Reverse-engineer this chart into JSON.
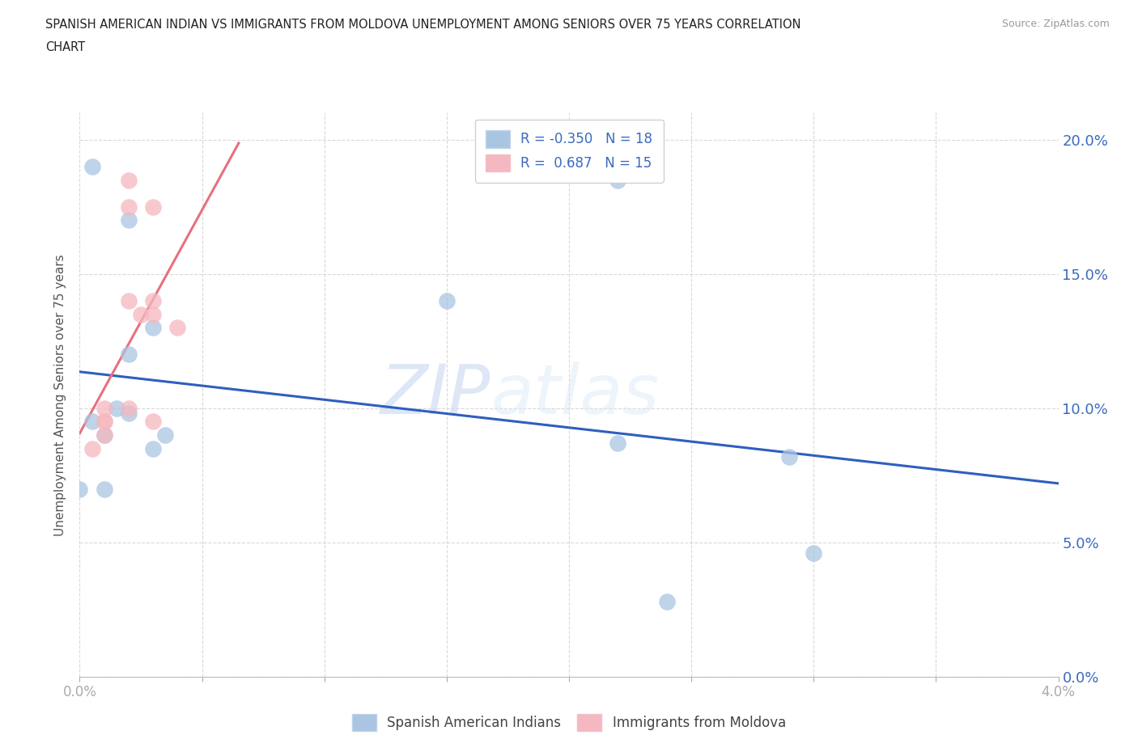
{
  "title_line1": "SPANISH AMERICAN INDIAN VS IMMIGRANTS FROM MOLDOVA UNEMPLOYMENT AMONG SENIORS OVER 75 YEARS CORRELATION",
  "title_line2": "CHART",
  "source": "Source: ZipAtlas.com",
  "ylabel": "Unemployment Among Seniors over 75 years",
  "r_blue": -0.35,
  "n_blue": 18,
  "r_pink": 0.687,
  "n_pink": 15,
  "xlim": [
    0.0,
    0.04
  ],
  "ylim": [
    0.0,
    0.21
  ],
  "xticks": [
    0.0,
    0.005,
    0.01,
    0.015,
    0.02,
    0.025,
    0.03,
    0.035,
    0.04
  ],
  "xtick_labels_shown": {
    "0.0": "0.0%",
    "0.04": "4.0%"
  },
  "yticks": [
    0.0,
    0.05,
    0.1,
    0.15,
    0.2
  ],
  "ytick_labels": [
    "0.0%",
    "5.0%",
    "10.0%",
    "15.0%",
    "20.0%"
  ],
  "blue_x": [
    0.0005,
    0.002,
    0.003,
    0.002,
    0.0035,
    0.001,
    0.0015,
    0.002,
    0.0005,
    0.001,
    0.0,
    0.003,
    0.022,
    0.015,
    0.022,
    0.029,
    0.03,
    0.024
  ],
  "blue_y": [
    0.19,
    0.17,
    0.13,
    0.12,
    0.09,
    0.09,
    0.1,
    0.098,
    0.095,
    0.07,
    0.07,
    0.085,
    0.185,
    0.14,
    0.087,
    0.082,
    0.046,
    0.028
  ],
  "pink_x": [
    0.0005,
    0.001,
    0.001,
    0.001,
    0.001,
    0.002,
    0.002,
    0.002,
    0.002,
    0.003,
    0.003,
    0.0025,
    0.003,
    0.003,
    0.004
  ],
  "pink_y": [
    0.085,
    0.095,
    0.095,
    0.1,
    0.09,
    0.185,
    0.175,
    0.14,
    0.1,
    0.095,
    0.175,
    0.135,
    0.135,
    0.14,
    0.13
  ],
  "blue_color": "#aac5e2",
  "blue_edge_color": "#aac5e2",
  "blue_line_color": "#2e5fbe",
  "pink_color": "#f5b8c0",
  "pink_edge_color": "#f5b8c0",
  "pink_line_color": "#e8707e",
  "legend_label_blue": "Spanish American Indians",
  "legend_label_pink": "Immigrants from Moldova",
  "watermark_zip": "ZIP",
  "watermark_atlas": "atlas",
  "background_color": "#ffffff",
  "grid_color": "#d0d0d0",
  "tick_color": "#aaaaaa",
  "label_color_blue": "#3a6abf",
  "label_color_black": "#444444"
}
